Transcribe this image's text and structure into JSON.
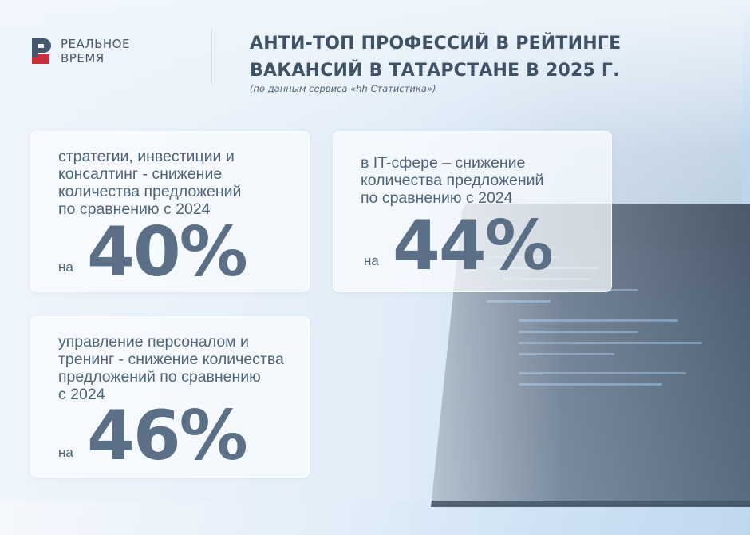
{
  "logo": {
    "line1": "РЕАЛЬНОЕ",
    "line2": "ВРЕМЯ",
    "mark_color": "#c8313a",
    "mark_dark": "#46586b"
  },
  "header": {
    "title_line1": "АНТИ-ТОП ПРОФЕССИЙ В РЕЙТИНГЕ",
    "title_line2": "ВАКАНСИЙ В ТАТАРСТАНЕ В 2025 Г.",
    "subtitle": "(по данным сервиса «hh Статистика»)"
  },
  "cards": [
    {
      "text": "стратегии, инвестиции и\nконсалтинг - снижение\nколичества предложений\nпо сравнению с 2024",
      "prefix": "на",
      "value": "40%"
    },
    {
      "text": "в IT-сфере – снижение\nколичества предложений\nпо сравнению с 2024",
      "prefix": "на",
      "value": "44%"
    },
    {
      "text": "управление персоналом и\nтренинг - снижение количества\nпредложений по сравнению\nс 2024",
      "prefix": "на",
      "value": "46%"
    }
  ],
  "colors": {
    "text": "#4f6478",
    "value": "#5b7087",
    "title": "#3f5266"
  }
}
